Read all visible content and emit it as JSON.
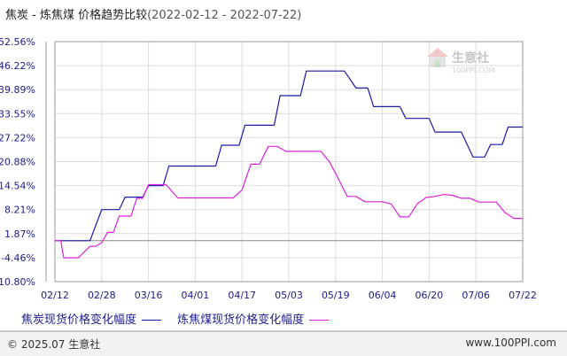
{
  "header": {
    "title": "焦炭 - 炼焦煤 价格趋势比较",
    "date_range": "(2022-02-12 - 2022-07-22)"
  },
  "watermark": {
    "name": "生意社",
    "url": "100PPI.COM"
  },
  "legend": {
    "items": [
      "焦炭现货价格变化幅度",
      "炼焦煤现货价格变化幅度"
    ]
  },
  "footer": {
    "copyright": "© 2025.07 生意社",
    "site": "www.100PPI.com"
  },
  "colors": {
    "series1": "#1a1aa8",
    "series2": "#dd22dd",
    "grid": "#dddddd",
    "axis": "#999999",
    "label": "#1c1c8c"
  },
  "chart_data": {
    "type": "line",
    "title": "焦炭 - 炼焦煤 价格趋势比较",
    "x_tick_labels": [
      "02/12",
      "02/28",
      "03/16",
      "04/01",
      "04/17",
      "05/03",
      "05/19",
      "06/04",
      "06/20",
      "07/06",
      "07/22"
    ],
    "y_tick_labels": [
      "52.56%",
      "46.22%",
      "39.89%",
      "33.55%",
      "27.22%",
      "20.88%",
      "14.54%",
      "8.21%",
      "1.87%",
      "-4.46%",
      "-10.80%"
    ],
    "y_ticks": [
      52.56,
      46.22,
      39.89,
      33.55,
      27.22,
      20.88,
      14.54,
      8.21,
      1.87,
      -4.46,
      -10.8
    ],
    "ylim": [
      -10.8,
      52.56
    ],
    "xlim": [
      0,
      160
    ],
    "grid": true,
    "legend_position": "bottom-left",
    "series": [
      {
        "name": "焦炭现货价格变化幅度",
        "color": "#1a1aa8",
        "x": [
          0,
          10,
          12,
          16,
          18,
          22,
          24,
          30,
          32,
          37,
          39,
          55,
          57,
          63,
          65,
          75,
          77,
          84,
          86,
          97,
          99,
          103,
          105,
          107,
          109,
          118,
          120,
          128,
          130,
          137,
          139,
          143,
          145,
          147,
          149,
          153,
          155,
          158,
          160
        ],
        "y": [
          0,
          0,
          0,
          8.21,
          8.21,
          8.21,
          11.5,
          11.5,
          14.54,
          14.54,
          19.7,
          19.7,
          25.2,
          25.2,
          30.5,
          30.5,
          38.3,
          38.3,
          44.8,
          44.8,
          44.8,
          40.3,
          40.3,
          40.3,
          35.4,
          35.4,
          32.3,
          32.3,
          28.7,
          28.7,
          28.7,
          22.1,
          22.1,
          22.1,
          25.4,
          25.4,
          30.0,
          30.0,
          30.0
        ]
      },
      {
        "name": "炼焦煤现货价格变化幅度",
        "color": "#dd22dd",
        "x": [
          0,
          2,
          3,
          5,
          8,
          10,
          12,
          14,
          16,
          18,
          20,
          22,
          24,
          26,
          28,
          30,
          32,
          34,
          36,
          38,
          42,
          45,
          48,
          50,
          52,
          55,
          58,
          61,
          64,
          67,
          70,
          73,
          76,
          79,
          82,
          85,
          88,
          91,
          94,
          97,
          100,
          103,
          106,
          109,
          112,
          115,
          118,
          121,
          124,
          127,
          130,
          133,
          136,
          139,
          142,
          145,
          148,
          151,
          154,
          157,
          160
        ],
        "y": [
          0,
          0,
          -4.5,
          -4.5,
          -4.5,
          -3.0,
          -1.5,
          -1.5,
          -0.5,
          2.2,
          2.2,
          6.5,
          6.5,
          6.5,
          11.2,
          11.2,
          14.8,
          14.8,
          14.8,
          14.8,
          11.3,
          11.3,
          11.3,
          11.3,
          11.3,
          11.3,
          11.3,
          11.3,
          13.4,
          20.2,
          20.2,
          24.9,
          24.9,
          23.6,
          23.6,
          23.6,
          23.6,
          23.6,
          20.7,
          16.3,
          11.7,
          11.7,
          10.3,
          10.3,
          10.3,
          9.7,
          6.3,
          6.3,
          9.8,
          11.4,
          11.7,
          12.2,
          12.0,
          11.2,
          11.2,
          10.2,
          10.2,
          10.2,
          7.4,
          5.9,
          5.9
        ]
      }
    ]
  }
}
